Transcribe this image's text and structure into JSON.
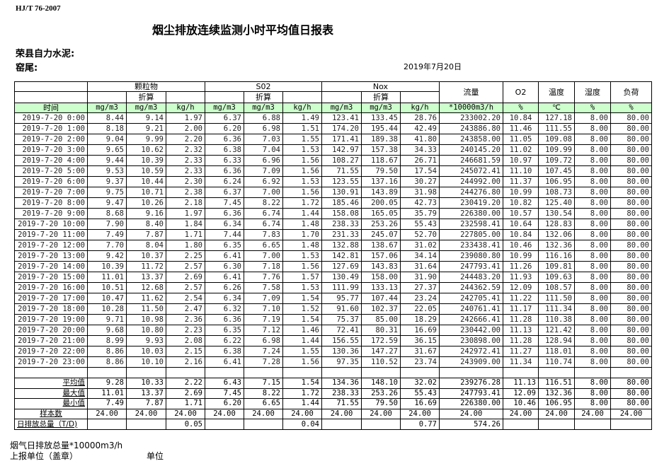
{
  "standard": "HJ/T  76-2007",
  "title": "烟尘排放连续监测小时平均值日报表",
  "company": "荣县自力水泥:",
  "kiln": "窑尾:",
  "date": "2019年7月20日",
  "header": {
    "groups": [
      "颗粒物",
      "S02",
      "Nox"
    ],
    "converted": "折算",
    "flow": "流量",
    "o2": "O2",
    "temp": "温度",
    "humidity": "湿度",
    "load": "负荷",
    "time": "时间",
    "units": [
      "mg/m3",
      "mg/m3",
      "kg/h",
      "mg/m3",
      "mg/m3",
      "kg/h",
      "mg/m3",
      "mg/m3",
      "kg/h",
      "*10000m3/h",
      "%",
      "℃",
      "%",
      "%"
    ]
  },
  "rows": [
    [
      "2019-7-20 0:00",
      "8.44",
      "9.14",
      "1.97",
      "6.37",
      "6.88",
      "1.49",
      "123.41",
      "133.45",
      "28.76",
      "233002.20",
      "10.84",
      "127.18",
      "8.00",
      "80.00"
    ],
    [
      "2019-7-20 1:00",
      "8.18",
      "9.21",
      "2.00",
      "6.20",
      "6.98",
      "1.51",
      "174.20",
      "195.44",
      "42.49",
      "243886.80",
      "11.46",
      "111.55",
      "8.00",
      "80.00"
    ],
    [
      "2019-7-20 2:00",
      "9.04",
      "9.99",
      "2.20",
      "6.36",
      "7.03",
      "1.55",
      "171.41",
      "189.38",
      "41.80",
      "243858.00",
      "11.05",
      "109.08",
      "8.00",
      "80.00"
    ],
    [
      "2019-7-20 3:00",
      "9.65",
      "10.62",
      "2.32",
      "6.38",
      "7.04",
      "1.53",
      "142.97",
      "157.38",
      "34.33",
      "240145.20",
      "11.02",
      "109.99",
      "8.00",
      "80.00"
    ],
    [
      "2019-7-20 4:00",
      "9.44",
      "10.39",
      "2.33",
      "6.33",
      "6.96",
      "1.56",
      "108.27",
      "118.67",
      "26.71",
      "246681.59",
      "10.97",
      "109.72",
      "8.00",
      "80.00"
    ],
    [
      "2019-7-20 5:00",
      "9.53",
      "10.59",
      "2.33",
      "6.36",
      "7.09",
      "1.56",
      "71.55",
      "79.50",
      "17.54",
      "245072.41",
      "11.10",
      "107.45",
      "8.00",
      "80.00"
    ],
    [
      "2019-7-20 6:00",
      "9.37",
      "10.44",
      "2.30",
      "6.24",
      "6.92",
      "1.53",
      "123.55",
      "137.16",
      "30.27",
      "244992.00",
      "11.37",
      "106.95",
      "8.00",
      "80.00"
    ],
    [
      "2019-7-20 7:00",
      "9.75",
      "10.71",
      "2.38",
      "6.37",
      "7.00",
      "1.56",
      "130.91",
      "143.89",
      "31.98",
      "244276.80",
      "10.99",
      "108.73",
      "8.00",
      "80.00"
    ],
    [
      "2019-7-20 8:00",
      "9.47",
      "10.26",
      "2.18",
      "7.45",
      "8.22",
      "1.72",
      "185.46",
      "200.05",
      "42.73",
      "230419.20",
      "10.82",
      "125.40",
      "8.00",
      "80.00"
    ],
    [
      "2019-7-20 9:00",
      "8.68",
      "9.16",
      "1.97",
      "6.36",
      "6.74",
      "1.44",
      "158.08",
      "165.05",
      "35.79",
      "226380.00",
      "10.57",
      "130.54",
      "8.00",
      "80.00"
    ],
    [
      "2019-7-20 10:00",
      "7.90",
      "8.40",
      "1.84",
      "6.34",
      "6.74",
      "1.48",
      "238.33",
      "253.26",
      "55.43",
      "232598.41",
      "10.64",
      "128.83",
      "8.00",
      "80.00"
    ],
    [
      "2019-7-20 11:00",
      "7.49",
      "7.87",
      "1.71",
      "7.44",
      "7.83",
      "1.70",
      "231.33",
      "245.07",
      "52.70",
      "227805.00",
      "10.84",
      "132.06",
      "8.00",
      "80.00"
    ],
    [
      "2019-7-20 12:00",
      "7.70",
      "8.04",
      "1.80",
      "6.35",
      "6.65",
      "1.48",
      "132.88",
      "138.67",
      "31.02",
      "233438.41",
      "10.46",
      "132.36",
      "8.00",
      "80.00"
    ],
    [
      "2019-7-20 13:00",
      "9.42",
      "10.37",
      "2.25",
      "6.41",
      "7.00",
      "1.53",
      "142.81",
      "157.06",
      "34.14",
      "239080.80",
      "10.99",
      "116.16",
      "8.00",
      "80.00"
    ],
    [
      "2019-7-20 14:00",
      "10.39",
      "11.72",
      "2.57",
      "6.30",
      "7.18",
      "1.56",
      "127.69",
      "143.83",
      "31.64",
      "247793.41",
      "11.26",
      "109.81",
      "8.00",
      "80.00"
    ],
    [
      "2019-7-20 15:00",
      "11.01",
      "13.37",
      "2.69",
      "6.41",
      "7.76",
      "1.57",
      "130.49",
      "158.00",
      "31.90",
      "244483.20",
      "11.93",
      "109.63",
      "8.00",
      "80.00"
    ],
    [
      "2019-7-20 16:00",
      "10.51",
      "12.68",
      "2.57",
      "6.26",
      "7.58",
      "1.53",
      "111.99",
      "133.13",
      "27.37",
      "244362.59",
      "12.09",
      "108.57",
      "8.00",
      "80.00"
    ],
    [
      "2019-7-20 17:00",
      "10.47",
      "11.62",
      "2.54",
      "6.34",
      "7.09",
      "1.54",
      "95.77",
      "107.44",
      "23.24",
      "242705.41",
      "11.22",
      "111.50",
      "8.00",
      "80.00"
    ],
    [
      "2019-7-20 18:00",
      "10.28",
      "11.50",
      "2.47",
      "6.32",
      "7.10",
      "1.52",
      "91.60",
      "102.37",
      "22.05",
      "240761.41",
      "11.17",
      "111.34",
      "8.00",
      "80.00"
    ],
    [
      "2019-7-20 19:00",
      "9.71",
      "10.98",
      "2.36",
      "6.36",
      "7.19",
      "1.54",
      "75.37",
      "85.00",
      "18.29",
      "242666.41",
      "11.28",
      "110.38",
      "8.00",
      "80.00"
    ],
    [
      "2019-7-20 20:00",
      "9.68",
      "10.80",
      "2.23",
      "6.35",
      "7.12",
      "1.46",
      "72.41",
      "80.31",
      "16.69",
      "230442.00",
      "11.13",
      "121.42",
      "8.00",
      "80.00"
    ],
    [
      "2019-7-20 21:00",
      "8.99",
      "9.93",
      "2.08",
      "6.22",
      "6.98",
      "1.44",
      "156.55",
      "172.59",
      "36.15",
      "230898.00",
      "11.28",
      "128.94",
      "8.00",
      "80.00"
    ],
    [
      "2019-7-20 22:00",
      "8.86",
      "10.03",
      "2.15",
      "6.38",
      "7.24",
      "1.55",
      "130.36",
      "147.27",
      "31.67",
      "242972.41",
      "11.27",
      "118.01",
      "8.00",
      "80.00"
    ],
    [
      "2019-7-20 23:00",
      "8.86",
      "10.10",
      "2.16",
      "6.41",
      "7.28",
      "1.56",
      "97.35",
      "110.52",
      "23.74",
      "243909.00",
      "11.34",
      "110.74",
      "8.00",
      "80.00"
    ]
  ],
  "stats": [
    [
      "平均值",
      "9.28",
      "10.33",
      "2.22",
      "6.43",
      "7.15",
      "1.54",
      "134.36",
      "148.10",
      "32.02",
      "239276.28",
      "11.13",
      "116.51",
      "8.00",
      "80.00"
    ],
    [
      "最大值",
      "11.01",
      "13.37",
      "2.69",
      "7.45",
      "8.22",
      "1.72",
      "238.33",
      "253.26",
      "55.43",
      "247793.41",
      "12.09",
      "132.36",
      "8.00",
      "80.00"
    ],
    [
      "最小值",
      "7.49",
      "7.87",
      "1.71",
      "6.20",
      "6.65",
      "1.44",
      "71.55",
      "79.50",
      "16.69",
      "226380.00",
      "10.46",
      "106.95",
      "8.00",
      "80.00"
    ],
    [
      "样本数",
      "24.00",
      "24.00",
      "24.00",
      "24.00",
      "24.00",
      "24.00",
      "24.00",
      "24.00",
      "24.00",
      "24.00",
      "24.00",
      "24.00",
      "24.00",
      "24.00"
    ]
  ],
  "daily_total": [
    "日排放总量（T/D)",
    "",
    "",
    "0.05",
    "",
    "",
    "0.04",
    "",
    "",
    "0.77",
    "574.26",
    "",
    "",
    "",
    ""
  ],
  "footer": {
    "flue_gas_total": "烟气日排放总量*10000m3/h",
    "reporting_unit": "上报单位（盖章）",
    "unit": "单位"
  }
}
